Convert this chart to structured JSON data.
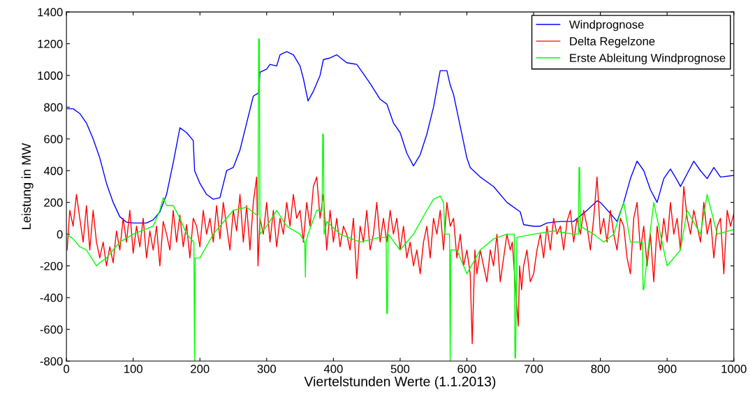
{
  "chart_data": {
    "type": "line",
    "xlabel": "Viertelstunden Werte (1.1.2013)",
    "ylabel": "Leistung in MW",
    "xlim": [
      0,
      1000
    ],
    "xticks": [
      0,
      100,
      200,
      300,
      400,
      500,
      600,
      700,
      800,
      900,
      1000
    ],
    "ylim": [
      -800,
      1400
    ],
    "yticks": [
      -800,
      -600,
      -400,
      -200,
      0,
      200,
      400,
      600,
      800,
      1000,
      1200,
      1400
    ],
    "grid": false,
    "legend": "top right",
    "marker": "none",
    "line_style": "solid",
    "series": [
      {
        "name": "Windprognose",
        "color": "#0000ff",
        "x": [
          0,
          10,
          20,
          30,
          40,
          50,
          60,
          70,
          80,
          90,
          100,
          120,
          130,
          140,
          150,
          160,
          170,
          180,
          190,
          192,
          200,
          210,
          220,
          230,
          240,
          250,
          260,
          270,
          280,
          288,
          290,
          300,
          305,
          315,
          320,
          330,
          340,
          350,
          355,
          362,
          370,
          380,
          385,
          395,
          405,
          420,
          435,
          445,
          455,
          470,
          480,
          490,
          500,
          510,
          520,
          530,
          540,
          550,
          560,
          570,
          575,
          580,
          590,
          600,
          605,
          620,
          640,
          660,
          680,
          685,
          700,
          710,
          720,
          740,
          760,
          780,
          795,
          800,
          815,
          825,
          835,
          845,
          855,
          865,
          875,
          885,
          895,
          905,
          915,
          920,
          930,
          940,
          950,
          960,
          970,
          980,
          1000
        ],
        "values": [
          790,
          790,
          760,
          700,
          600,
          480,
          320,
          200,
          110,
          75,
          70,
          70,
          90,
          140,
          250,
          450,
          670,
          640,
          590,
          400,
          320,
          250,
          220,
          230,
          400,
          420,
          530,
          700,
          870,
          890,
          1020,
          1040,
          1070,
          1060,
          1130,
          1150,
          1130,
          1060,
          980,
          840,
          900,
          1000,
          1100,
          1110,
          1130,
          1080,
          1070,
          1010,
          950,
          850,
          820,
          700,
          640,
          510,
          430,
          500,
          630,
          800,
          1030,
          1030,
          940,
          880,
          680,
          480,
          420,
          360,
          300,
          200,
          140,
          60,
          50,
          50,
          70,
          80,
          80,
          150,
          210,
          200,
          130,
          80,
          200,
          350,
          460,
          400,
          280,
          200,
          350,
          410,
          340,
          300,
          380,
          460,
          400,
          350,
          420,
          360,
          370
        ]
      },
      {
        "name": "Delta Regelzone",
        "color": "#ff0000",
        "x": [
          1,
          5,
          10,
          15,
          20,
          25,
          30,
          35,
          40,
          45,
          50,
          55,
          60,
          65,
          70,
          75,
          80,
          85,
          90,
          95,
          100,
          105,
          110,
          115,
          120,
          125,
          130,
          135,
          140,
          145,
          150,
          155,
          160,
          165,
          170,
          175,
          180,
          185,
          190,
          195,
          200,
          205,
          210,
          215,
          220,
          225,
          230,
          235,
          240,
          245,
          250,
          255,
          260,
          265,
          270,
          275,
          280,
          285,
          287,
          290,
          295,
          300,
          305,
          310,
          315,
          320,
          325,
          330,
          335,
          340,
          345,
          350,
          355,
          360,
          365,
          370,
          375,
          380,
          385,
          390,
          395,
          400,
          405,
          410,
          415,
          420,
          425,
          430,
          435,
          440,
          445,
          450,
          455,
          460,
          465,
          470,
          475,
          480,
          485,
          490,
          495,
          500,
          505,
          510,
          515,
          520,
          525,
          530,
          535,
          540,
          545,
          550,
          555,
          560,
          565,
          570,
          575,
          580,
          585,
          590,
          595,
          600,
          605,
          608,
          612,
          615,
          620,
          625,
          630,
          635,
          640,
          645,
          650,
          655,
          660,
          665,
          668,
          677,
          679,
          682,
          685,
          690,
          695,
          700,
          705,
          710,
          715,
          720,
          725,
          730,
          735,
          740,
          745,
          750,
          755,
          760,
          765,
          770,
          775,
          780,
          785,
          790,
          795,
          800,
          805,
          810,
          815,
          820,
          825,
          830,
          835,
          840,
          845,
          850,
          855,
          860,
          865,
          870,
          875,
          880,
          885,
          890,
          895,
          900,
          905,
          910,
          915,
          920,
          925,
          930,
          935,
          940,
          945,
          950,
          955,
          960,
          965,
          970,
          975,
          980,
          985,
          990,
          995,
          1000
        ],
        "values": [
          -100,
          150,
          50,
          250,
          100,
          -50,
          180,
          -100,
          150,
          -50,
          -150,
          -50,
          -200,
          -80,
          -180,
          20,
          -100,
          100,
          -50,
          150,
          -120,
          50,
          -80,
          100,
          -150,
          20,
          -100,
          50,
          -200,
          80,
          0,
          -100,
          150,
          -50,
          120,
          -80,
          60,
          -150,
          100,
          50,
          -80,
          150,
          0,
          100,
          -50,
          180,
          -30,
          200,
          50,
          -100,
          150,
          20,
          250,
          -50,
          180,
          -100,
          200,
          360,
          -200,
          100,
          0,
          200,
          -50,
          150,
          -80,
          100,
          0,
          200,
          50,
          250,
          100,
          150,
          -50,
          200,
          50,
          300,
          360,
          100,
          250,
          -100,
          150,
          -50,
          100,
          -80,
          50,
          0,
          -100,
          100,
          -280,
          50,
          -50,
          150,
          -100,
          0,
          200,
          -50,
          100,
          -50,
          150,
          0,
          100,
          -100,
          50,
          -150,
          -50,
          -200,
          -100,
          -250,
          -50,
          50,
          -150,
          100,
          0,
          150,
          -100,
          200,
          50,
          100,
          -150,
          0,
          -200,
          -100,
          -250,
          -690,
          -100,
          -250,
          -100,
          -200,
          -300,
          -100,
          -200,
          0,
          -300,
          -150,
          0,
          -100,
          -50,
          -580,
          -200,
          -350,
          -200,
          -100,
          -300,
          -250,
          -100,
          0,
          -150,
          50,
          -100,
          100,
          0,
          50,
          -100,
          80,
          150,
          -50,
          100,
          0,
          150,
          50,
          -100,
          100,
          360,
          0,
          100,
          -50,
          150,
          0,
          -100,
          100,
          50,
          -150,
          -250,
          100,
          200,
          -100,
          50,
          -200,
          0,
          -300,
          50,
          -100,
          100,
          -50,
          200,
          0,
          100,
          -100,
          300,
          100,
          0,
          150,
          50,
          -50,
          200,
          0,
          100,
          -150,
          50,
          100,
          -250,
          150,
          50,
          130
        ]
      },
      {
        "name": "Erste Ableitung Windprognose",
        "color": "#00ff00",
        "x": [
          0,
          10,
          20,
          30,
          45,
          50,
          60,
          70,
          80,
          100,
          130,
          140,
          145,
          150,
          160,
          170,
          180,
          191,
          192,
          193,
          200,
          220,
          250,
          270,
          285,
          287,
          288,
          289,
          290,
          300,
          315,
          330,
          350,
          357,
          358,
          359,
          362,
          375,
          383,
          384,
          385,
          386,
          390,
          410,
          440,
          470,
          479,
          480,
          481,
          482,
          500,
          520,
          540,
          550,
          560,
          565,
          567,
          574,
          575,
          576,
          585,
          600,
          620,
          640,
          660,
          671,
          672,
          673,
          675,
          700,
          730,
          760,
          767,
          768,
          769,
          770,
          790,
          805,
          820,
          835,
          845,
          863,
          864,
          865,
          870,
          880,
          890,
          900,
          920,
          930,
          950,
          960,
          975,
          1000
        ],
        "values": [
          0,
          -30,
          -80,
          -100,
          -200,
          -180,
          -150,
          -100,
          -50,
          0,
          50,
          150,
          230,
          180,
          180,
          100,
          0,
          -50,
          -800,
          -150,
          -150,
          0,
          150,
          170,
          120,
          120,
          1230,
          1230,
          0,
          50,
          150,
          50,
          0,
          -50,
          -270,
          -50,
          0,
          150,
          150,
          630,
          630,
          0,
          80,
          0,
          -50,
          -20,
          -20,
          -500,
          -500,
          0,
          -100,
          0,
          150,
          220,
          240,
          200,
          0,
          0,
          -800,
          -100,
          -100,
          -250,
          -100,
          -30,
          0,
          0,
          -780,
          -780,
          -20,
          0,
          20,
          0,
          0,
          420,
          420,
          50,
          0,
          -50,
          0,
          200,
          -50,
          -50,
          -350,
          -350,
          -150,
          200,
          0,
          -200,
          -100,
          150,
          0,
          250,
          0,
          30
        ]
      }
    ]
  }
}
